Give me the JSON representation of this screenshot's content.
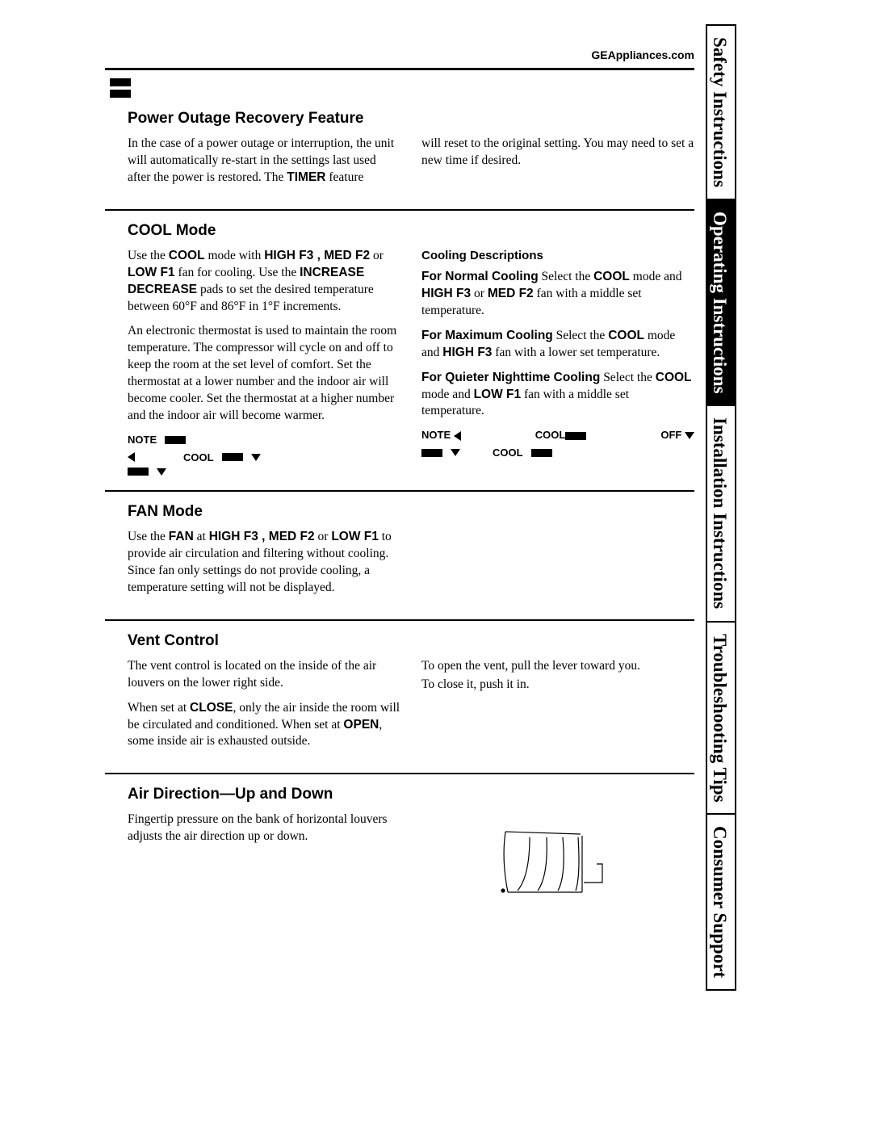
{
  "header": {
    "site": "GEAppliances.com"
  },
  "sideTabs": [
    {
      "label": "Safety Instructions",
      "inverted": false
    },
    {
      "label": "Operating Instructions",
      "inverted": true
    },
    {
      "label": "Installation Instructions",
      "inverted": false
    },
    {
      "label": "Troubleshooting Tips",
      "inverted": false
    },
    {
      "label": "Consumer Support",
      "inverted": false
    }
  ],
  "sections": {
    "powerOutage": {
      "title": "Power Outage Recovery Feature",
      "left_p1_a": "In the case of a power outage or interruption, the unit will automatically re-start in the settings last used after the power is restored. The ",
      "left_p1_bold": "TIMER",
      "left_p1_b": " feature",
      "right_p1": "will reset to the original setting. You may need to set a new time if desired."
    },
    "cool": {
      "title": "COOL Mode",
      "left_p1_parts": [
        {
          "t": "Use the "
        },
        {
          "b": "COOL"
        },
        {
          "t": " mode with "
        },
        {
          "b": "HIGH F3 , MED F2"
        },
        {
          "t": " or "
        },
        {
          "b": "LOW F1"
        },
        {
          "t": " fan for cooling. Use the "
        },
        {
          "b": "INCREASE DECREASE"
        },
        {
          "t": "    pads to set the desired temperature between 60°F and 86°F in 1°F increments."
        }
      ],
      "left_p2": "An electronic thermostat is used to maintain the room temperature. The compressor will cycle on and off to keep the room at the set level of comfort. Set the thermostat at a lower number and the indoor air will become cooler. Set the thermostat at a higher number and the indoor air will become warmer.",
      "left_note_a": "NOTE",
      "left_note_b": "COOL",
      "right_hdr": "Cooling Descriptions",
      "right_p1_parts": [
        {
          "b": "For Normal Cooling"
        },
        {
          "t": "    Select the "
        },
        {
          "b": "COOL"
        },
        {
          "t": " mode and "
        },
        {
          "b": "HIGH F3"
        },
        {
          "t": " or "
        },
        {
          "b": "MED F2"
        },
        {
          "t": " fan with a middle set temperature."
        }
      ],
      "right_p2_parts": [
        {
          "b": "For Maximum Cooling"
        },
        {
          "t": "    Select the "
        },
        {
          "b": "COOL"
        },
        {
          "t": " mode and "
        },
        {
          "b": "HIGH F3"
        },
        {
          "t": " fan with a lower set temperature."
        }
      ],
      "right_p3_parts": [
        {
          "b": "For Quieter Nighttime Cooling"
        },
        {
          "t": "    Select the "
        },
        {
          "b": "COOL"
        },
        {
          "t": " mode and "
        },
        {
          "b": "LOW F1"
        },
        {
          "t": " fan with a middle set temperature."
        }
      ],
      "right_note_a": "NOTE",
      "right_note_b": "COOL",
      "right_note_c": "OFF",
      "right_note_d": "COOL"
    },
    "fan": {
      "title": "FAN Mode",
      "p_parts": [
        {
          "t": "Use the "
        },
        {
          "b": "FAN"
        },
        {
          "t": " at "
        },
        {
          "b": "HIGH F3 , MED F2"
        },
        {
          "t": " or "
        },
        {
          "b": "LOW F1"
        },
        {
          "t": " to provide air circulation and filtering without cooling. Since fan only settings do not provide cooling, a temperature setting will not be displayed."
        }
      ]
    },
    "vent": {
      "title": "Vent Control",
      "left_p1": "The vent control is located on the inside of the air louvers on the lower right side.",
      "left_p2_parts": [
        {
          "t": "When set at "
        },
        {
          "b": "CLOSE"
        },
        {
          "t": ", only the air inside the room will be circulated and conditioned. When set at "
        },
        {
          "b": "OPEN"
        },
        {
          "t": ", some inside air is exhausted outside."
        }
      ],
      "right_p1": "To open the vent, pull the lever toward you.",
      "right_p2": "To close it, push it in."
    },
    "airDir": {
      "title": "Air Direction—Up and Down",
      "p": "Fingertip pressure on the bank of horizontal louvers adjusts the air direction up or down."
    }
  }
}
